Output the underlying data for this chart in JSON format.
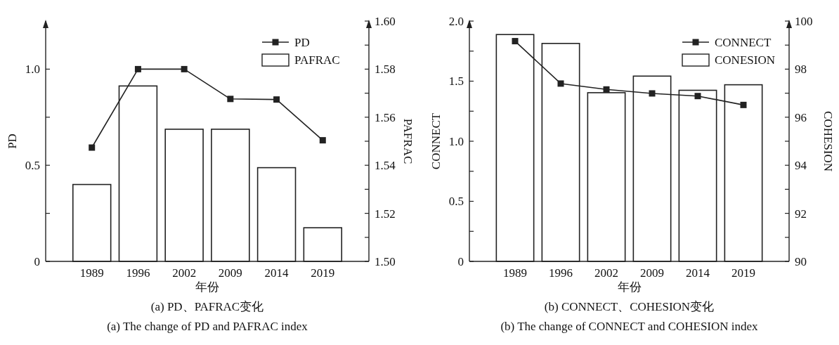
{
  "chart_data": [
    {
      "type": "bar",
      "title": "(a) PD、PAFRAC变化",
      "subtitle": "(a) The change of PD and PAFRAC index",
      "xlabel": "年份",
      "ylabel": "PD",
      "y2label": "PAFRAC",
      "categories": [
        "1989",
        "1996",
        "2002",
        "2009",
        "2014",
        "2019"
      ],
      "series": [
        {
          "name": "PD",
          "type": "line",
          "axis": "y",
          "color": "#222222",
          "values": [
            0.592,
            1.0,
            1.0,
            0.845,
            0.842,
            0.63
          ]
        },
        {
          "name": "PAFRAC",
          "axis": "y2",
          "color": "#222222",
          "values": [
            1.532,
            1.573,
            1.555,
            1.555,
            1.539,
            1.514
          ]
        }
      ],
      "ylim": [
        0,
        1.25
      ],
      "yticks": [
        0,
        {
          "value": 0.25,
          "label": null
        },
        0.5,
        {
          "value": 0.75,
          "label": null
        },
        {
          "value": 1,
          "label": "1.0"
        }
      ],
      "y2lim": [
        1.5,
        1.6
      ],
      "y2ticks": [
        {
          "value": 1.5,
          "label": "1.50"
        },
        {
          "value": 1.51,
          "label": null
        },
        {
          "value": 1.52,
          "label": "1.52"
        },
        {
          "value": 1.53,
          "label": null
        },
        {
          "value": 1.54,
          "label": "1.54"
        },
        {
          "value": 1.55,
          "label": null
        },
        {
          "value": 1.56,
          "label": "1.56"
        },
        {
          "value": 1.57,
          "label": null
        },
        {
          "value": 1.58,
          "label": "1.58"
        },
        {
          "value": 1.59,
          "label": null
        },
        {
          "value": 1.6,
          "label": "1.60"
        }
      ],
      "legend": "top right",
      "marker": "square"
    },
    {
      "type": "bar",
      "title": "(b) CONNECT、COHESION变化",
      "subtitle": "(b) The change of CONNECT and COHESION index",
      "xlabel": "年份",
      "ylabel": "CONNECT",
      "y2label": "COHESION",
      "categories": [
        "1989",
        "1996",
        "2002",
        "2009",
        "2014",
        "2019"
      ],
      "series": [
        {
          "name": "CONNECT",
          "type": "line",
          "axis": "y",
          "color": "#222222",
          "values": [
            1.833,
            1.48,
            1.431,
            1.398,
            1.376,
            1.302
          ]
        },
        {
          "name": "CONESION",
          "axis": "y2",
          "color": "#222222",
          "values": [
            99.44,
            99.07,
            97.02,
            97.71,
            97.12,
            97.35
          ]
        }
      ],
      "ylim": [
        0,
        2
      ],
      "yticks": [
        0,
        {
          "value": 0.25,
          "label": null
        },
        0.5,
        {
          "value": 0.75,
          "label": null
        },
        {
          "value": 1,
          "label": "1.0"
        },
        {
          "value": 1.25,
          "label": null
        },
        1.5,
        {
          "value": 1.75,
          "label": null
        },
        {
          "value": 2,
          "label": "2.0"
        }
      ],
      "y2lim": [
        90,
        100
      ],
      "y2ticks": [
        90,
        {
          "value": 91,
          "label": null
        },
        92,
        {
          "value": 93,
          "label": null
        },
        94,
        {
          "value": 95,
          "label": null
        },
        96,
        {
          "value": 97,
          "label": null
        },
        98,
        {
          "value": 99,
          "label": null
        },
        100
      ],
      "legend": "top right",
      "marker": "square"
    }
  ]
}
